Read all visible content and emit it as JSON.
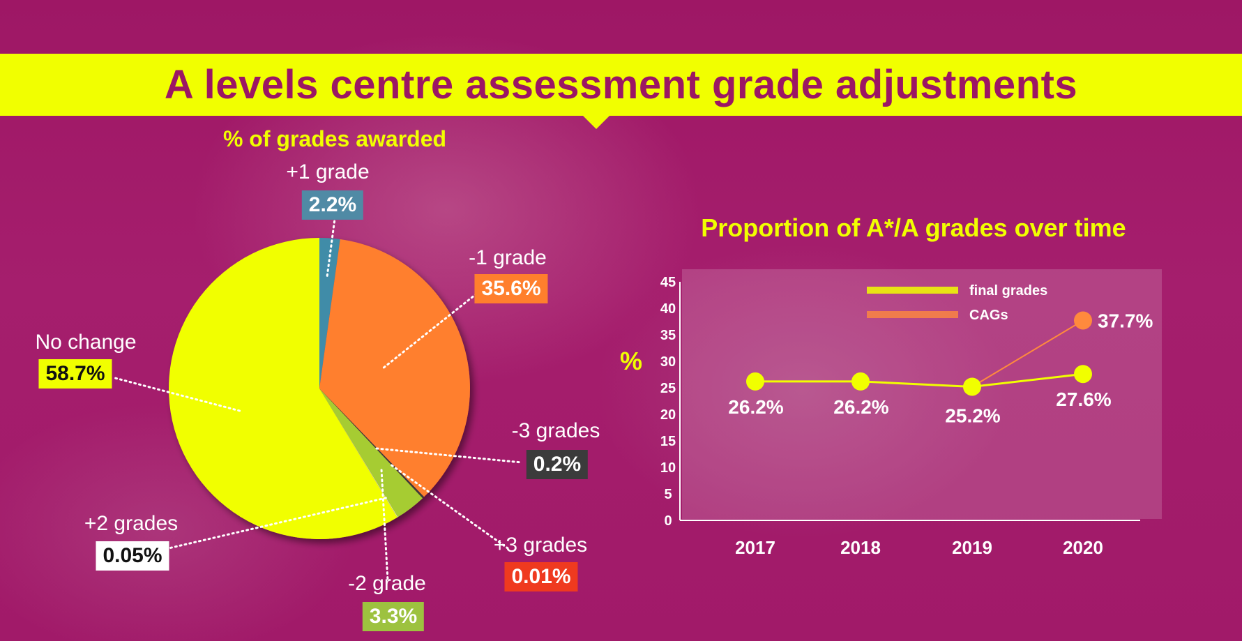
{
  "title": "A levels centre assessment grade adjustments",
  "chart_data": [
    {
      "type": "pie",
      "title": "% of grades awarded",
      "slices": [
        {
          "label": "+1 grade",
          "value": 2.2,
          "value_label": "2.2%",
          "color": "#3f8ca8",
          "badge_bg": "#508aa5",
          "badge_fg": "#ffffff"
        },
        {
          "label": "-1 grade",
          "value": 35.6,
          "value_label": "35.6%",
          "color": "#ff7f2d",
          "badge_bg": "#ff7f2d",
          "badge_fg": "#ffffff"
        },
        {
          "label": "-3 grades",
          "value": 0.2,
          "value_label": "0.2%",
          "color": "#3b3b3b",
          "badge_bg": "#3b3b3b",
          "badge_fg": "#ffffff"
        },
        {
          "label": "+3 grades",
          "value": 0.01,
          "value_label": "0.01%",
          "color": "#ef3a1f",
          "badge_bg": "#ef3a1f",
          "badge_fg": "#ffffff"
        },
        {
          "label": "-2 grade",
          "value": 3.3,
          "value_label": "3.3%",
          "color": "#a6cc33",
          "badge_bg": "#9dc23f",
          "badge_fg": "#ffffff"
        },
        {
          "label": "+2 grades",
          "value": 0.05,
          "value_label": "0.05%",
          "color": "#e6e6e6",
          "badge_bg": "#ffffff",
          "badge_fg": "#111111"
        },
        {
          "label": "No change",
          "value": 58.7,
          "value_label": "58.7%",
          "color": "#f1ff00",
          "badge_bg": "#f1ff00",
          "badge_fg": "#111111"
        }
      ]
    },
    {
      "type": "line",
      "title": "Proportion of A*/A grades over time",
      "ylabel": "%",
      "ylim": [
        0,
        45
      ],
      "yticks": [
        0,
        5,
        10,
        15,
        20,
        25,
        30,
        35,
        40,
        45
      ],
      "categories": [
        "2017",
        "2018",
        "2019",
        "2020"
      ],
      "series": [
        {
          "name": "final grades",
          "color": "#f1ff00",
          "values": [
            26.2,
            26.2,
            25.2,
            27.6
          ],
          "labels": [
            "26.2%",
            "26.2%",
            "25.2%",
            "27.6%"
          ]
        },
        {
          "name": "CAGs",
          "color": "#ff8a3d",
          "values": [
            null,
            null,
            25.2,
            37.7
          ],
          "labels": [
            "",
            "",
            "",
            "37.7%"
          ]
        }
      ],
      "legend_position": "top"
    }
  ]
}
